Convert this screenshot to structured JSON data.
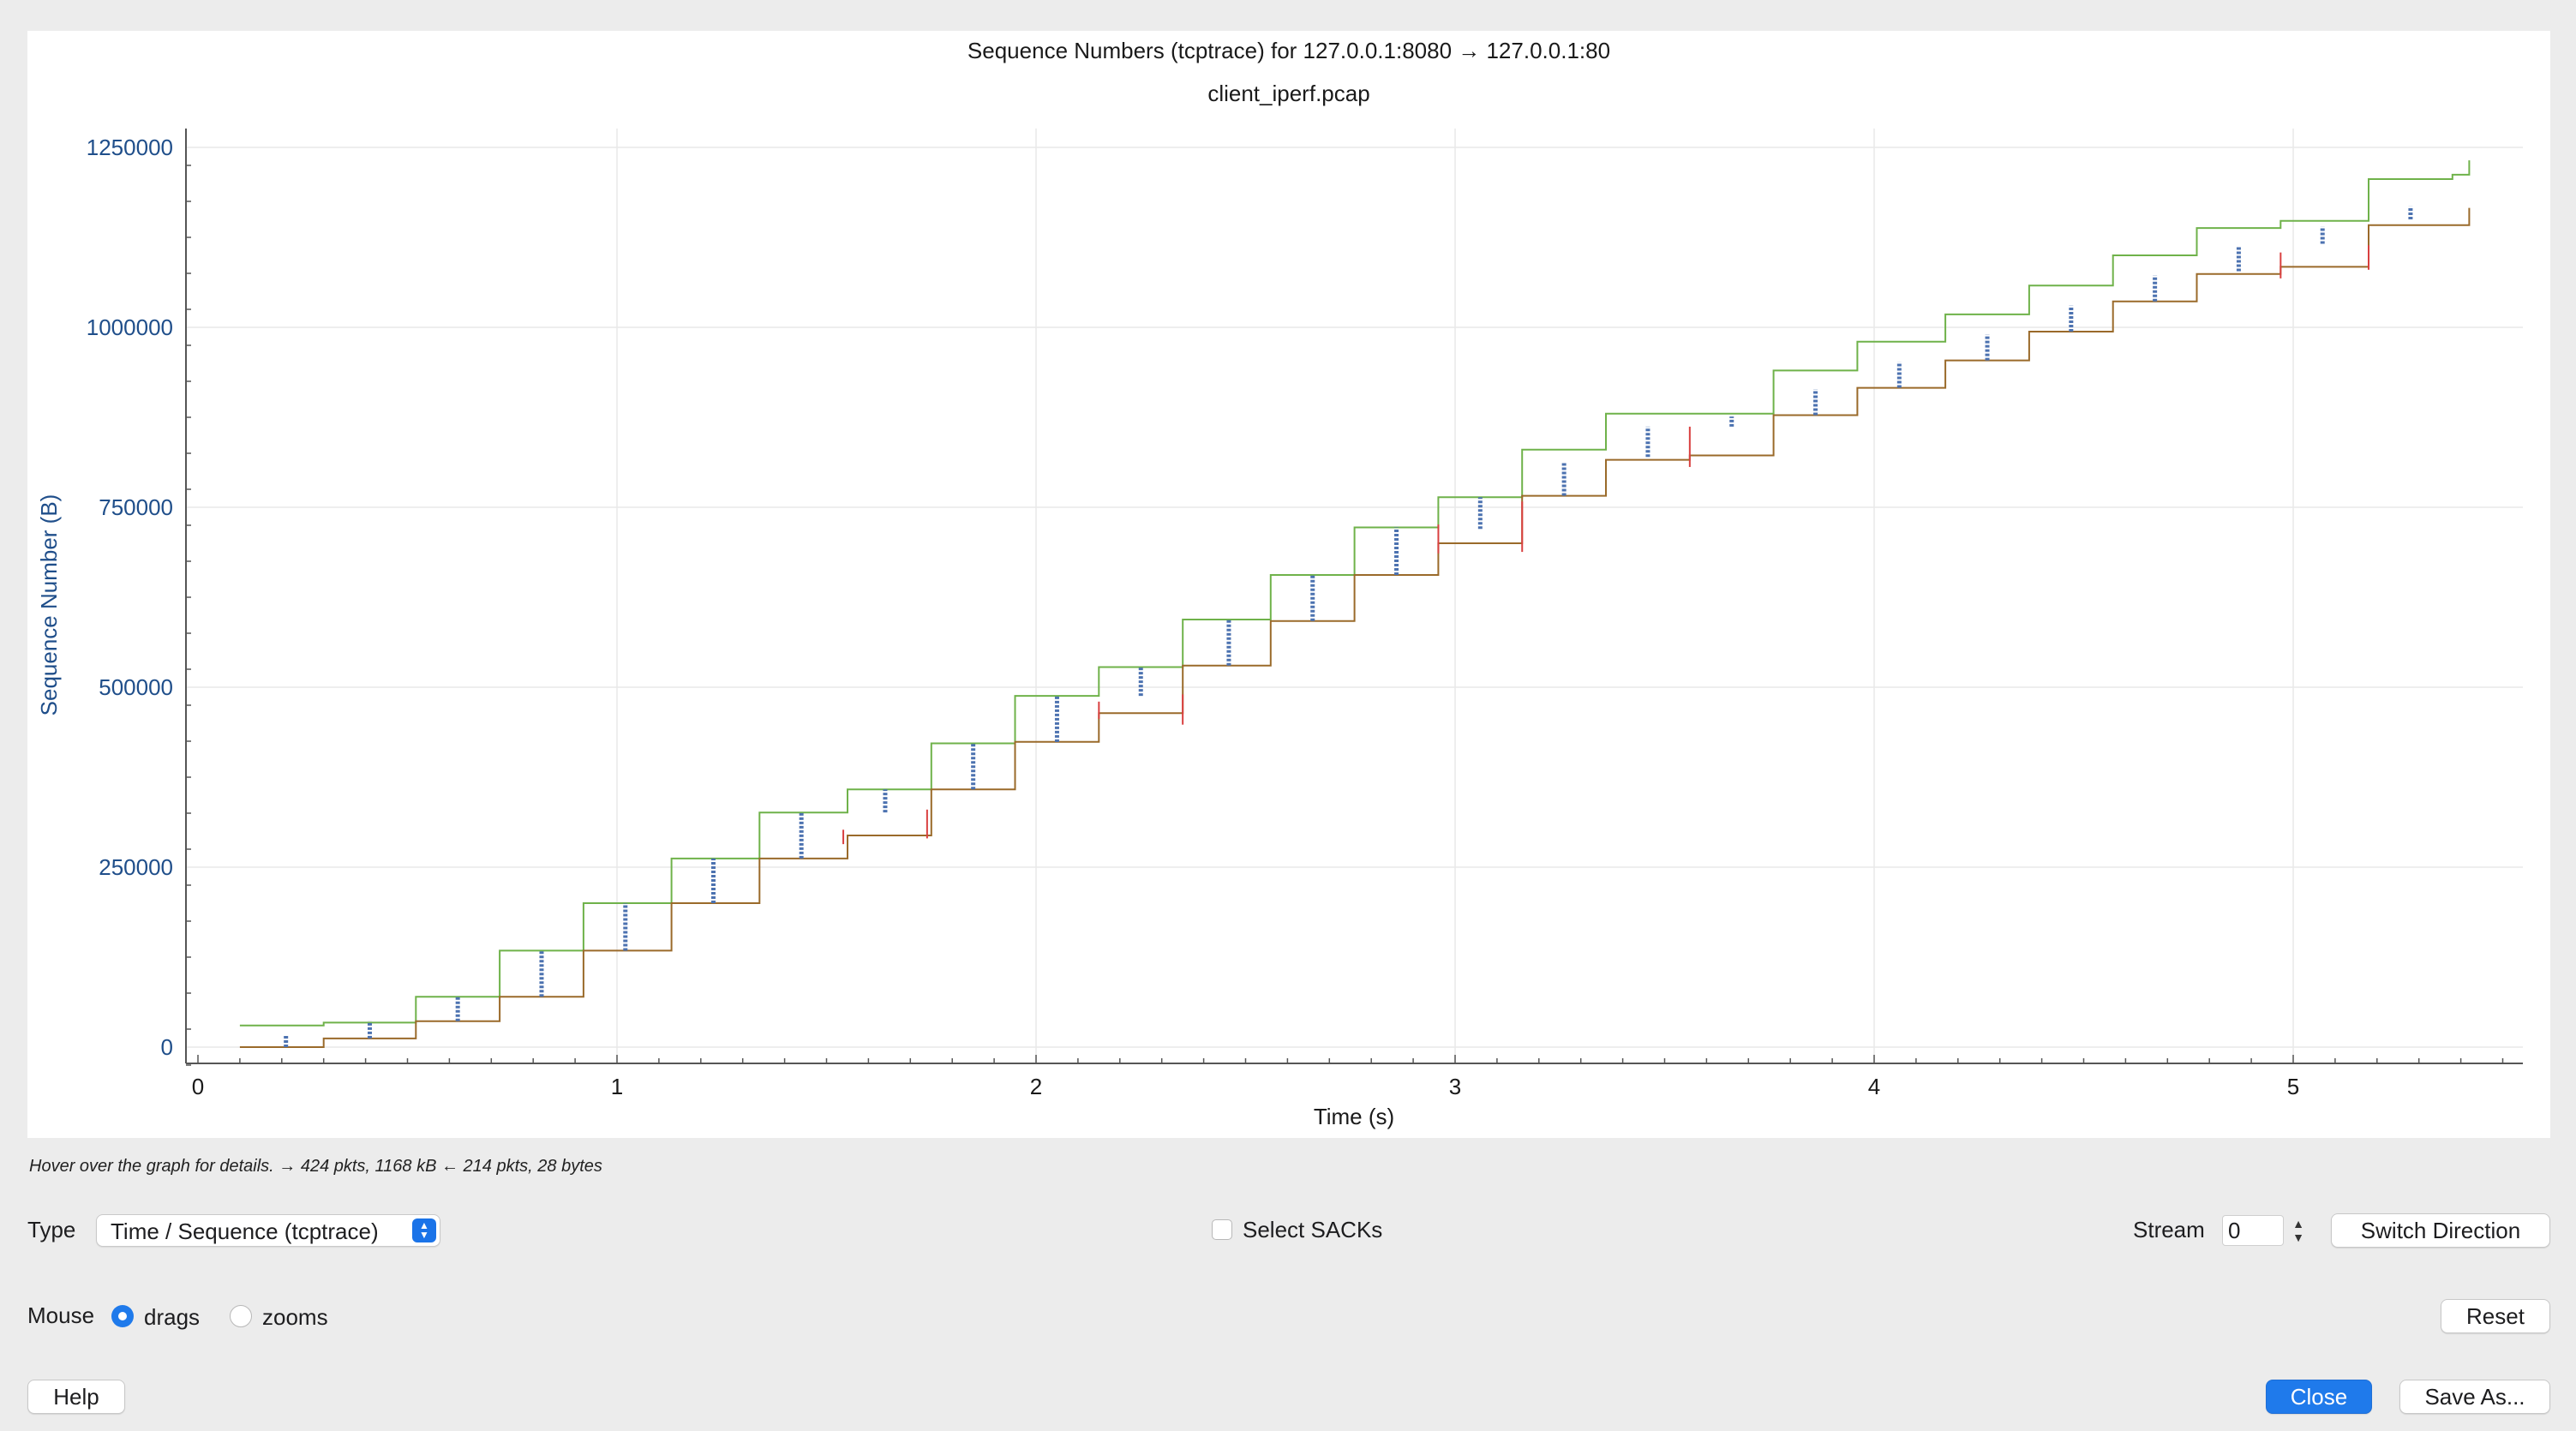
{
  "chart": {
    "title": "Sequence Numbers (tcptrace) for 127.0.0.1:8080 → 127.0.0.1:80",
    "subtitle": "client_iperf.pcap",
    "ylabel": "Sequence Number (B)",
    "xlabel": "Time (s)",
    "y_ticks": [
      "1250000",
      "1000000",
      "750000",
      "500000",
      "250000",
      "0"
    ],
    "x_ticks": [
      "0",
      "1",
      "2",
      "3",
      "4",
      "5"
    ]
  },
  "chart_data": {
    "type": "line",
    "title": "Sequence Numbers (tcptrace) for 127.0.0.1:8080 → 127.0.0.1:80",
    "subtitle": "client_iperf.pcap",
    "xlabel": "Time (s)",
    "ylabel": "Sequence Number (B)",
    "xlim": [
      0,
      5.57
    ],
    "ylim": [
      -25000,
      1250000
    ],
    "grid": true,
    "legend": "none",
    "colors": {
      "window": "#6fb24a",
      "ack": "#9a6a2a",
      "data": "#4c72b0",
      "sack": "#d94040"
    },
    "series": [
      {
        "role": "receive-window",
        "points": [
          [
            0.1,
            30000
          ],
          [
            0.3,
            30000
          ],
          [
            0.3,
            34000
          ],
          [
            0.52,
            34000
          ],
          [
            0.52,
            70000
          ],
          [
            0.72,
            70000
          ],
          [
            0.72,
            134000
          ],
          [
            0.92,
            134000
          ],
          [
            0.92,
            200000
          ],
          [
            1.13,
            200000
          ],
          [
            1.13,
            262000
          ],
          [
            1.34,
            262000
          ],
          [
            1.34,
            326000
          ],
          [
            1.55,
            326000
          ],
          [
            1.55,
            358000
          ],
          [
            1.75,
            358000
          ],
          [
            1.75,
            422000
          ],
          [
            1.95,
            422000
          ],
          [
            1.95,
            488000
          ],
          [
            2.15,
            488000
          ],
          [
            2.15,
            528000
          ],
          [
            2.35,
            528000
          ],
          [
            2.35,
            594000
          ],
          [
            2.56,
            594000
          ],
          [
            2.56,
            656000
          ],
          [
            2.76,
            656000
          ],
          [
            2.76,
            722000
          ],
          [
            2.96,
            722000
          ],
          [
            2.96,
            764000
          ],
          [
            3.16,
            764000
          ],
          [
            3.16,
            830000
          ],
          [
            3.36,
            830000
          ],
          [
            3.36,
            880000
          ],
          [
            3.76,
            880000
          ],
          [
            3.76,
            940000
          ],
          [
            3.96,
            940000
          ],
          [
            3.96,
            980000
          ],
          [
            4.17,
            980000
          ],
          [
            4.17,
            1018000
          ],
          [
            4.37,
            1018000
          ],
          [
            4.37,
            1058000
          ],
          [
            4.57,
            1058000
          ],
          [
            4.57,
            1100000
          ],
          [
            4.77,
            1100000
          ],
          [
            4.77,
            1138000
          ],
          [
            4.97,
            1138000
          ],
          [
            4.97,
            1148000
          ],
          [
            5.18,
            1148000
          ],
          [
            5.18,
            1206000
          ],
          [
            5.38,
            1206000
          ],
          [
            5.38,
            1212000
          ],
          [
            5.42,
            1212000
          ],
          [
            5.42,
            1232000
          ]
        ]
      },
      {
        "role": "ack",
        "points": [
          [
            0.1,
            0
          ],
          [
            0.3,
            0
          ],
          [
            0.3,
            12000
          ],
          [
            0.52,
            12000
          ],
          [
            0.52,
            36000
          ],
          [
            0.72,
            36000
          ],
          [
            0.72,
            70000
          ],
          [
            0.92,
            70000
          ],
          [
            0.92,
            134000
          ],
          [
            1.13,
            134000
          ],
          [
            1.13,
            200000
          ],
          [
            1.34,
            200000
          ],
          [
            1.34,
            262000
          ],
          [
            1.55,
            262000
          ],
          [
            1.55,
            294000
          ],
          [
            1.75,
            294000
          ],
          [
            1.75,
            358000
          ],
          [
            1.95,
            358000
          ],
          [
            1.95,
            424000
          ],
          [
            2.15,
            424000
          ],
          [
            2.15,
            464000
          ],
          [
            2.35,
            464000
          ],
          [
            2.35,
            530000
          ],
          [
            2.56,
            530000
          ],
          [
            2.56,
            592000
          ],
          [
            2.76,
            592000
          ],
          [
            2.76,
            656000
          ],
          [
            2.96,
            656000
          ],
          [
            2.96,
            700000
          ],
          [
            3.16,
            700000
          ],
          [
            3.16,
            766000
          ],
          [
            3.36,
            766000
          ],
          [
            3.36,
            816000
          ],
          [
            3.56,
            816000
          ],
          [
            3.56,
            822000
          ],
          [
            3.76,
            822000
          ],
          [
            3.76,
            878000
          ],
          [
            3.96,
            878000
          ],
          [
            3.96,
            916000
          ],
          [
            4.17,
            916000
          ],
          [
            4.17,
            954000
          ],
          [
            4.37,
            954000
          ],
          [
            4.37,
            994000
          ],
          [
            4.57,
            994000
          ],
          [
            4.57,
            1036000
          ],
          [
            4.77,
            1036000
          ],
          [
            4.77,
            1074000
          ],
          [
            4.97,
            1074000
          ],
          [
            4.97,
            1084000
          ],
          [
            5.18,
            1084000
          ],
          [
            5.18,
            1142000
          ],
          [
            5.42,
            1142000
          ],
          [
            5.42,
            1166000
          ]
        ]
      },
      {
        "role": "data-segments",
        "bursts": [
          [
            0.21,
            0,
            16000
          ],
          [
            0.41,
            12000,
            36000
          ],
          [
            0.62,
            36000,
            70000
          ],
          [
            0.82,
            70000,
            134000
          ],
          [
            1.02,
            134000,
            200000
          ],
          [
            1.23,
            200000,
            262000
          ],
          [
            1.44,
            262000,
            326000
          ],
          [
            1.64,
            326000,
            358000
          ],
          [
            1.85,
            358000,
            422000
          ],
          [
            2.05,
            424000,
            488000
          ],
          [
            2.25,
            488000,
            528000
          ],
          [
            2.46,
            530000,
            594000
          ],
          [
            2.66,
            592000,
            656000
          ],
          [
            2.86,
            656000,
            722000
          ],
          [
            3.06,
            720000,
            764000
          ],
          [
            3.26,
            766000,
            812000
          ],
          [
            3.46,
            820000,
            862000
          ],
          [
            3.66,
            862000,
            876000
          ],
          [
            3.86,
            878000,
            914000
          ],
          [
            4.06,
            916000,
            952000
          ],
          [
            4.27,
            954000,
            990000
          ],
          [
            4.47,
            994000,
            1030000
          ],
          [
            4.67,
            1036000,
            1072000
          ],
          [
            4.87,
            1078000,
            1112000
          ],
          [
            5.07,
            1116000,
            1140000
          ],
          [
            5.28,
            1150000,
            1168000
          ]
        ]
      },
      {
        "role": "sack-marks",
        "marks": [
          [
            1.54,
            282000,
            302000
          ],
          [
            1.74,
            290000,
            330000
          ],
          [
            2.15,
            456000,
            480000
          ],
          [
            2.35,
            448000,
            490000
          ],
          [
            2.96,
            686000,
            726000
          ],
          [
            3.16,
            688000,
            758000
          ],
          [
            3.56,
            806000,
            862000
          ],
          [
            4.97,
            1068000,
            1104000
          ],
          [
            5.18,
            1080000,
            1114000
          ]
        ]
      }
    ]
  },
  "status": {
    "hint": "Hover over the graph for details. → 424 pkts, 1168 kB ← 214 pkts, 28 bytes"
  },
  "controls": {
    "type_label": "Type",
    "type_value": "Time / Sequence (tcptrace)",
    "select_sacks_label": "Select SACKs",
    "stream_label": "Stream",
    "stream_value": "0",
    "switch_direction": "Switch Direction",
    "mouse_label": "Mouse",
    "radio_drags": "drags",
    "radio_zooms": "zooms",
    "reset": "Reset",
    "help": "Help",
    "close": "Close",
    "save_as": "Save As..."
  }
}
